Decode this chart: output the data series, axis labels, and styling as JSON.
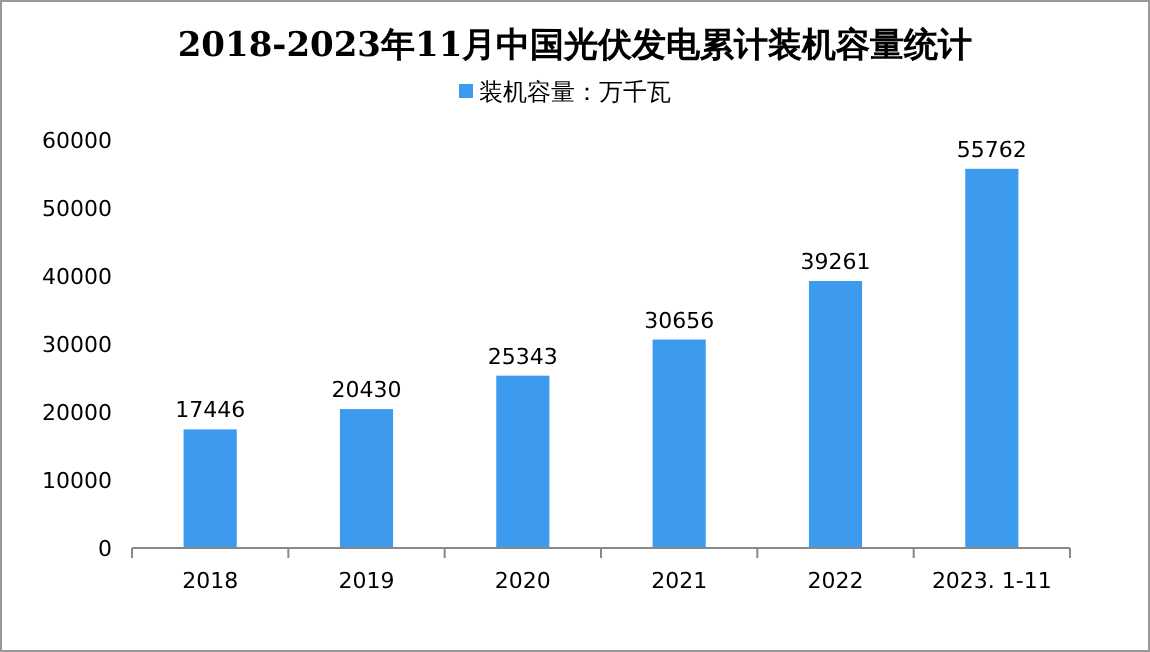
{
  "chart_data": {
    "type": "bar",
    "title": "2018-2023年11月中国光伏发电累计装机容量统计",
    "categories": [
      "2018",
      "2019",
      "2020",
      "2021",
      "2022",
      "2023. 1-11"
    ],
    "series": [
      {
        "name": "装机容量：万千瓦",
        "color": "#3d9bef",
        "values": [
          17446,
          20430,
          25343,
          30656,
          39261,
          55762
        ]
      }
    ],
    "ylim": [
      0,
      60000
    ],
    "yticks": [
      0,
      10000,
      20000,
      30000,
      40000,
      50000,
      60000
    ],
    "data_labels": true,
    "legend": "top"
  }
}
